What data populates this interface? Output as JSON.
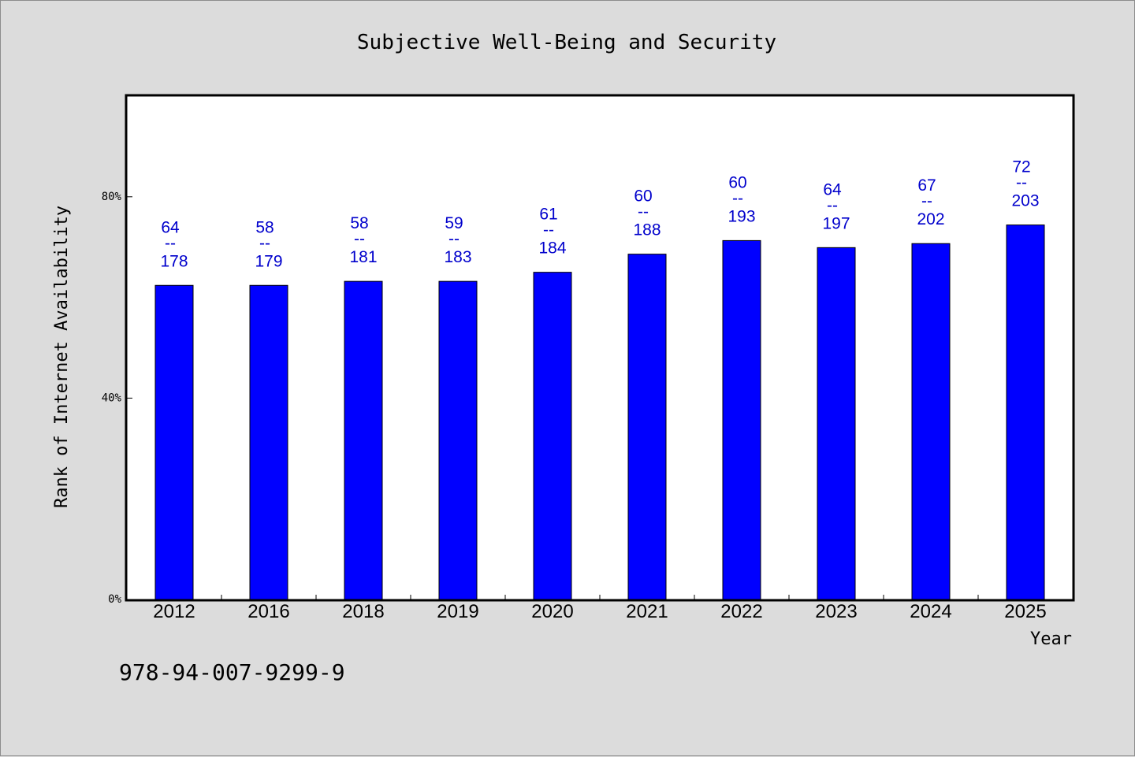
{
  "footer_code": "978-94-007-9299-9",
  "colors": {
    "bar": "#0000ff",
    "label": "#0000cc",
    "plot_bg": "#ffffff",
    "page_bg": "#dcdcdc"
  },
  "chart_data": {
    "type": "bar",
    "title": "Subjective Well-Being and Security",
    "xlabel": "Year",
    "ylabel": "Rank of Internet Availability",
    "categories": [
      "2012",
      "2016",
      "2018",
      "2019",
      "2020",
      "2021",
      "2022",
      "2023",
      "2024",
      "2025"
    ],
    "values": [
      62.4,
      62.4,
      63.2,
      63.2,
      65.0,
      68.6,
      71.3,
      69.9,
      70.7,
      74.4
    ],
    "labels_top": [
      "64",
      "58",
      "58",
      "59",
      "61",
      "60",
      "60",
      "64",
      "67",
      "72"
    ],
    "labels_bottom": [
      "178",
      "179",
      "181",
      "183",
      "184",
      "188",
      "193",
      "197",
      "202",
      "203"
    ],
    "label_separator": "--",
    "ylim": [
      0,
      100
    ],
    "yticks": [
      0,
      40,
      80
    ],
    "ytick_labels": [
      "0%",
      "40%",
      "80%"
    ],
    "grid": false,
    "legend": "none"
  }
}
